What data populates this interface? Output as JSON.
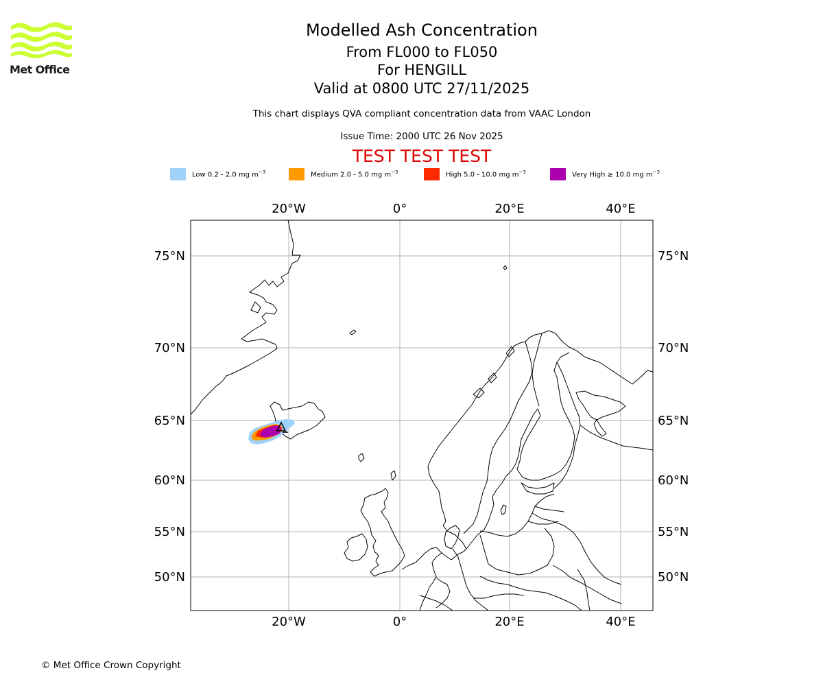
{
  "brand": {
    "logo_text": "Met Office",
    "logo_color": "#ccff33"
  },
  "title": {
    "line1": "Modelled Ash Concentration",
    "line2": "From FL000 to FL050",
    "line3": "For HENGILL",
    "line4": "Valid at 0800 UTC 27/11/2025"
  },
  "subtitle": "This chart displays QVA compliant concentration data from VAAC London",
  "issue_time": "Issue Time: 2000 UTC 26 Nov 2025",
  "test_banner": "TEST TEST TEST",
  "test_banner_color": "#e00000",
  "legend": [
    {
      "label": "Low 0.2 - 2.0 mg m",
      "unit_exp": "−3",
      "color": "#a0d2fa"
    },
    {
      "label": "Medium 2.0 - 5.0 mg m",
      "unit_exp": "−3",
      "color": "#ff9a00"
    },
    {
      "label": "High 5.0 - 10.0 mg m",
      "unit_exp": "−3",
      "color": "#ff2a00"
    },
    {
      "label": "Very High  ≥  10.0 mg m",
      "unit_exp": "−3",
      "color": "#ad00ad"
    }
  ],
  "map": {
    "lon_ticks": [
      "20°W",
      "0°",
      "20°E",
      "40°E"
    ],
    "lat_ticks": [
      "75°N",
      "70°N",
      "65°N",
      "60°N",
      "55°N",
      "50°N"
    ],
    "gridline_color": "#b0b0b0",
    "source_volcano": "HENGILL",
    "source_location": {
      "lat": 64.1,
      "lon": -21.3
    }
  },
  "copyright": "© Met Office Crown Copyright"
}
